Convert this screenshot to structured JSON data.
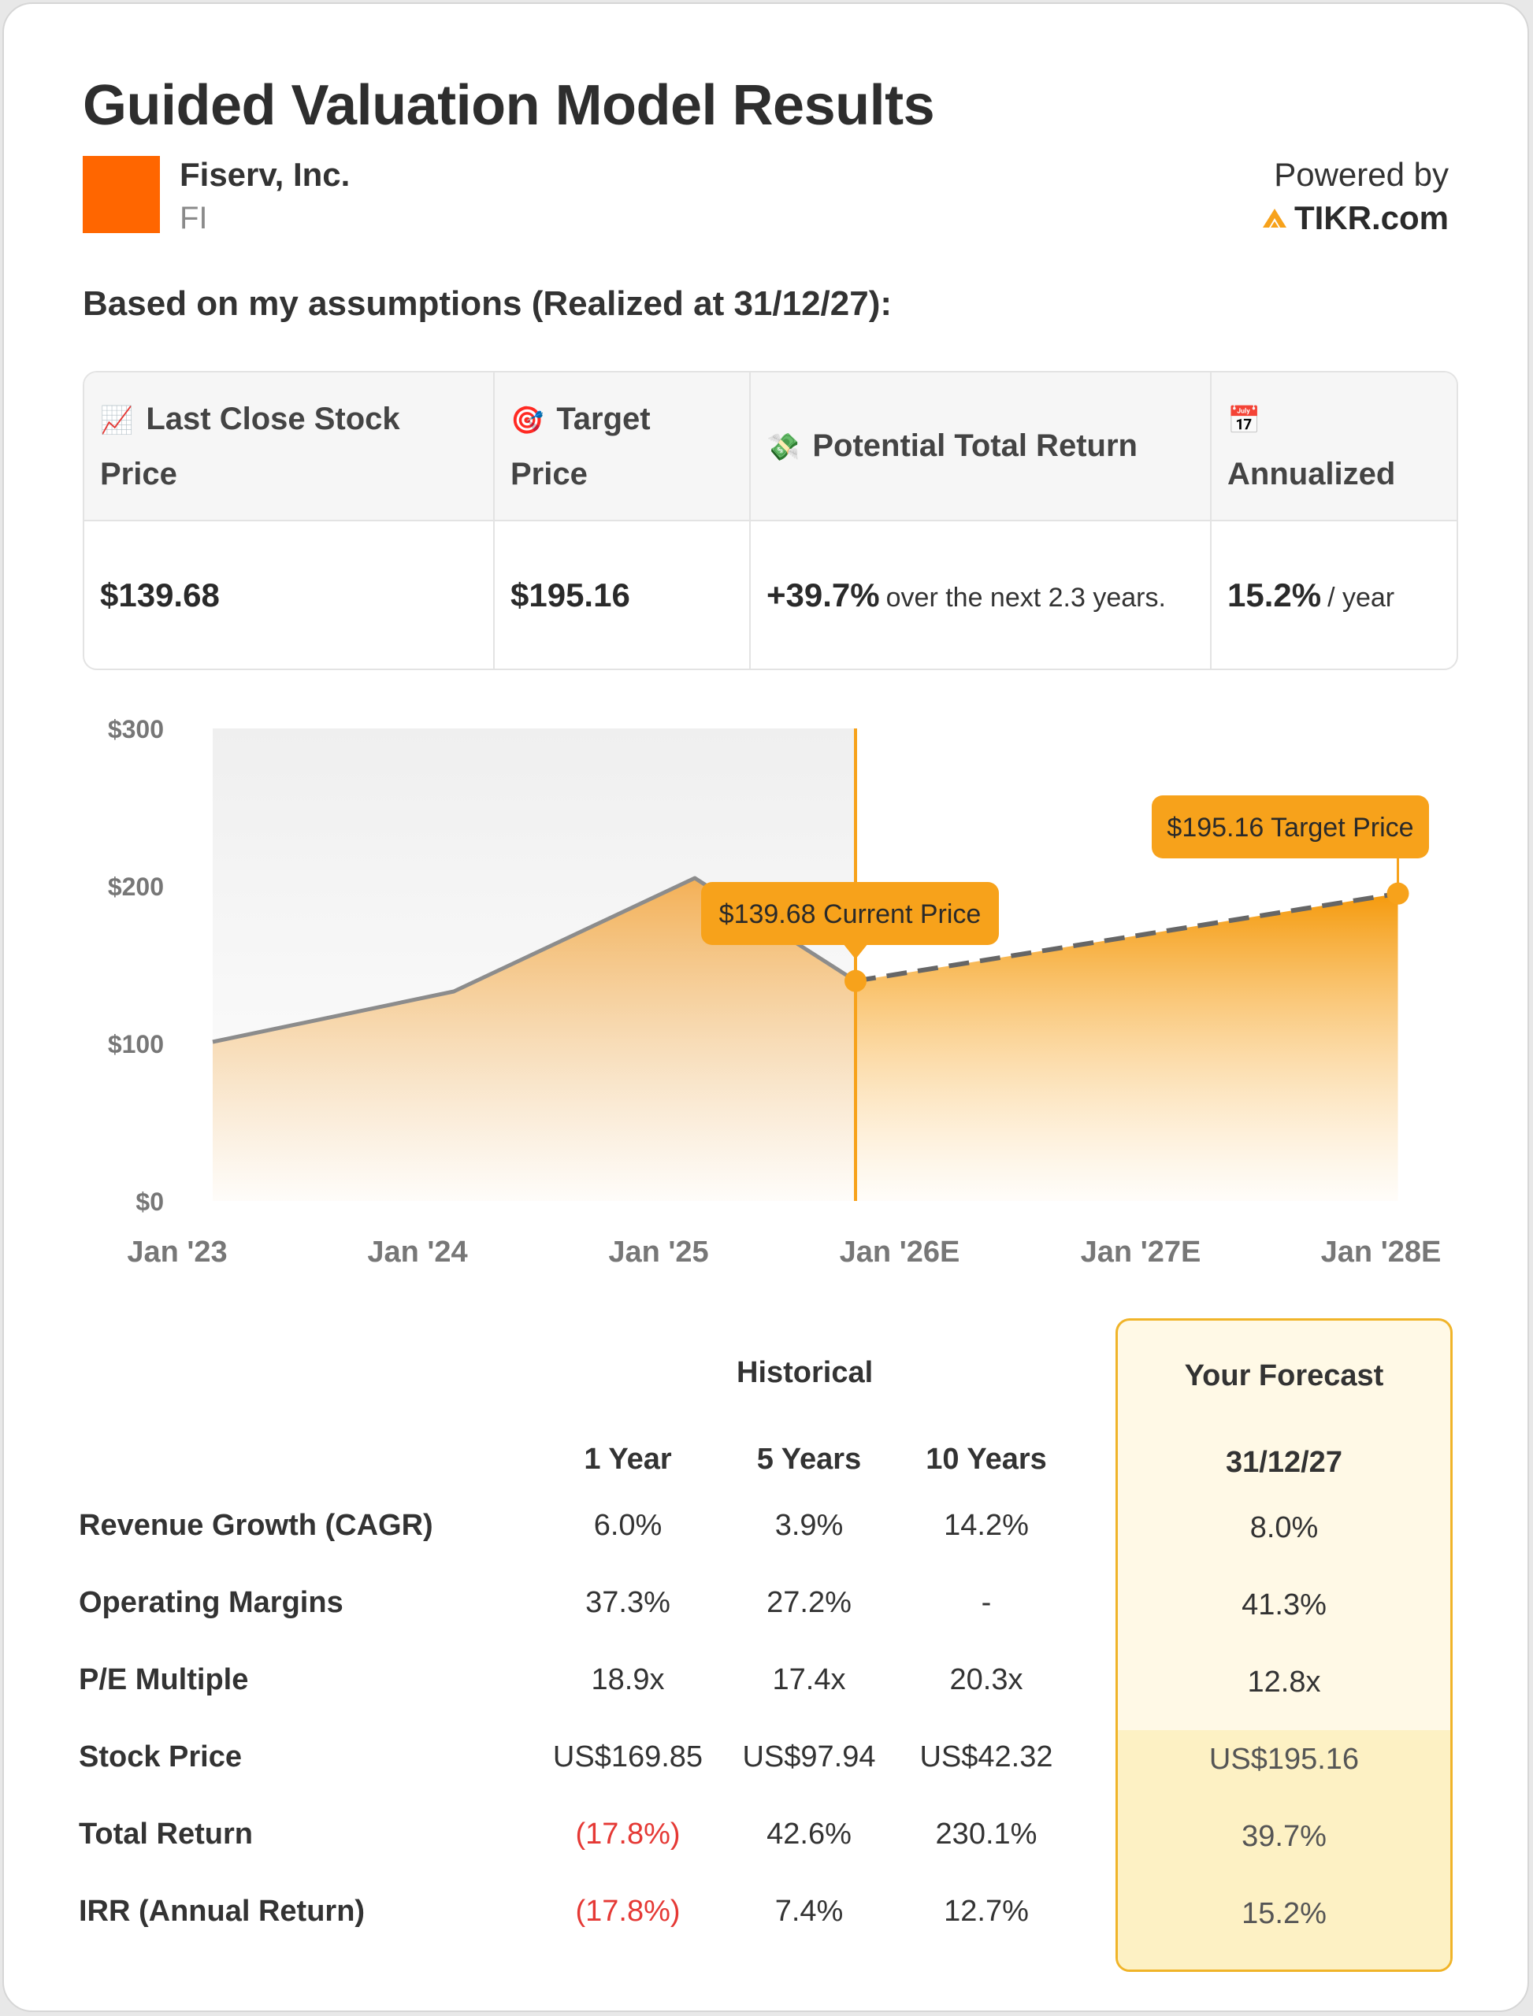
{
  "header": {
    "title": "Guided Valuation Model Results",
    "company_name": "Fiserv, Inc.",
    "ticker": "FI",
    "powered_by": "Powered by",
    "brand": "TIKR.com",
    "logo_color": "#ff6600"
  },
  "subtitle": "Based on my assumptions (Realized at 31/12/27):",
  "metrics": {
    "headers": [
      {
        "icon": "📈",
        "icon_name": "chart-up-icon",
        "label": "Last Close Stock Price"
      },
      {
        "icon": "🎯",
        "icon_name": "target-icon",
        "label": "Target Price"
      },
      {
        "icon": "💸",
        "icon_name": "money-wings-icon",
        "label": "Potential Total Return"
      },
      {
        "icon": "📅",
        "icon_name": "calendar-icon",
        "label": "Annualized"
      }
    ],
    "last_close": "$139.68",
    "target": "$195.16",
    "total_return": "+39.7%",
    "total_return_note": "over the next 2.3 years.",
    "annualized": "15.2%",
    "annualized_unit": "/ year"
  },
  "chart_data": {
    "type": "area",
    "x_labels": [
      "Jan '23",
      "Jan '24",
      "Jan '25",
      "Jan '26E",
      "Jan '27E",
      "Jan '28E"
    ],
    "y_ticks": [
      "$0",
      "$100",
      "$200",
      "$300"
    ],
    "ylim": [
      0,
      300
    ],
    "historical": [
      {
        "x": "2023-01",
        "y": 101
      },
      {
        "x": "2024-01",
        "y": 133
      },
      {
        "x": "2025-01",
        "y": 205
      },
      {
        "x": "2025-09",
        "y": 139.68
      }
    ],
    "forecast": [
      {
        "x": "2025-09",
        "y": 139.68
      },
      {
        "x": "2027-12",
        "y": 195.16
      }
    ],
    "current_label": "$139.68 Current Price",
    "target_label": "$195.16 Target Price",
    "accent_color": "#f7a21b",
    "line_color": "#8c8c8c"
  },
  "stats": {
    "historical_heading": "Historical",
    "forecast_heading": "Your Forecast",
    "forecast_date": "31/12/27",
    "columns": [
      "1 Year",
      "5 Years",
      "10 Years"
    ],
    "rows": [
      {
        "label": "Revenue Growth (CAGR)",
        "values": [
          "6.0%",
          "3.9%",
          "14.2%"
        ],
        "forecast": "8.0%"
      },
      {
        "label": "Operating Margins",
        "values": [
          "37.3%",
          "27.2%",
          "-"
        ],
        "forecast": "41.3%"
      },
      {
        "label": "P/E Multiple",
        "values": [
          "18.9x",
          "17.4x",
          "20.3x"
        ],
        "forecast": "12.8x"
      },
      {
        "label": "Stock Price",
        "values": [
          "US$169.85",
          "US$97.94",
          "US$42.32"
        ],
        "forecast": "US$195.16"
      },
      {
        "label": "Total Return",
        "values": [
          "(17.8%)",
          "42.6%",
          "230.1%"
        ],
        "forecast": "39.7%"
      },
      {
        "label": "IRR (Annual Return)",
        "values": [
          "(17.8%)",
          "7.4%",
          "12.7%"
        ],
        "forecast": "15.2%"
      }
    ]
  }
}
